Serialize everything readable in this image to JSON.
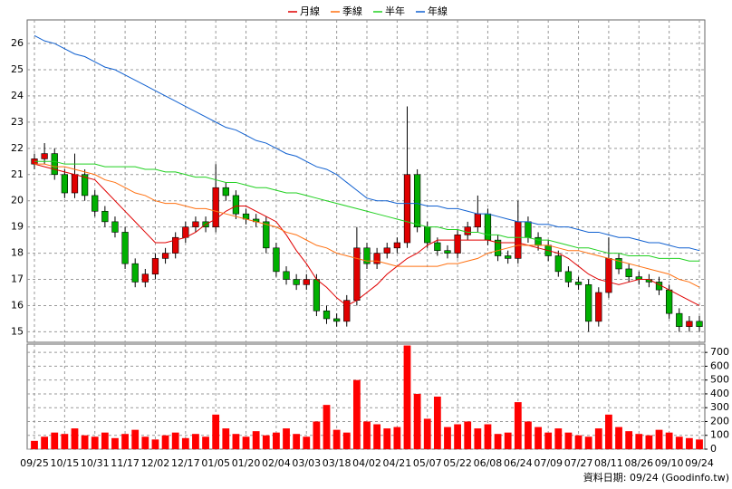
{
  "chart_data": {
    "type": "candlestick",
    "source": "資料日期: 09/24  (Goodinfo.tw)",
    "categories": [
      "09/25",
      null,
      null,
      "10/15",
      null,
      null,
      "10/31",
      null,
      null,
      "11/17",
      null,
      null,
      "12/02",
      null,
      null,
      "12/17",
      null,
      null,
      "01/05",
      null,
      null,
      "01/20",
      null,
      null,
      "02/04",
      null,
      null,
      "03/03",
      null,
      null,
      "03/18",
      null,
      null,
      "04/02",
      null,
      null,
      "04/21",
      null,
      null,
      "05/07",
      null,
      null,
      "05/22",
      null,
      null,
      "06/08",
      null,
      null,
      "06/24",
      null,
      null,
      "07/09",
      null,
      null,
      "07/27",
      null,
      null,
      "08/11",
      null,
      null,
      "08/26",
      null,
      null,
      "09/10",
      null,
      null,
      "09/24"
    ],
    "open": [
      21.4,
      21.6,
      21.8,
      21.0,
      20.3,
      21.0,
      20.2,
      19.6,
      19.2,
      18.8,
      17.6,
      16.9,
      17.2,
      17.8,
      18.0,
      18.6,
      19.0,
      19.2,
      19.0,
      20.5,
      20.2,
      19.5,
      19.3,
      19.2,
      18.2,
      17.3,
      17.0,
      16.8,
      17.0,
      15.8,
      15.5,
      15.4,
      16.2,
      18.2,
      17.6,
      18.0,
      18.2,
      18.4,
      21.0,
      19.0,
      18.4,
      18.1,
      18.0,
      18.7,
      19.0,
      19.5,
      18.5,
      17.9,
      17.8,
      19.2,
      18.6,
      18.3,
      17.9,
      17.3,
      16.9,
      16.8,
      15.4,
      16.5,
      17.8,
      17.4,
      17.1,
      17.0,
      16.9,
      16.6,
      15.7,
      15.2,
      15.4
    ],
    "high": [
      21.8,
      22.2,
      22.0,
      21.2,
      21.8,
      21.2,
      20.4,
      19.8,
      19.4,
      19.0,
      17.8,
      17.4,
      18.0,
      18.2,
      18.8,
      19.2,
      19.4,
      19.4,
      21.4,
      20.7,
      20.4,
      19.7,
      19.5,
      19.4,
      18.4,
      17.5,
      17.2,
      17.2,
      17.2,
      16.0,
      15.7,
      16.4,
      19.0,
      18.4,
      18.2,
      18.4,
      18.6,
      23.6,
      21.2,
      19.2,
      18.6,
      18.3,
      18.9,
      19.2,
      20.2,
      19.7,
      18.7,
      18.1,
      20.0,
      19.4,
      18.8,
      18.5,
      18.1,
      17.5,
      17.1,
      17.0,
      16.7,
      18.6,
      18.0,
      17.6,
      17.3,
      17.2,
      17.1,
      16.8,
      15.9,
      15.6,
      15.6
    ],
    "low": [
      21.2,
      21.4,
      20.8,
      20.1,
      20.1,
      20.0,
      19.4,
      19.0,
      18.6,
      17.4,
      16.7,
      16.7,
      17.0,
      17.6,
      17.8,
      18.4,
      18.8,
      18.8,
      18.8,
      20.0,
      19.3,
      19.1,
      19.0,
      18.0,
      17.1,
      16.8,
      16.6,
      16.6,
      15.6,
      15.3,
      15.2,
      15.2,
      16.0,
      17.4,
      17.4,
      17.8,
      18.0,
      18.2,
      18.8,
      18.2,
      17.9,
      17.8,
      17.8,
      18.5,
      18.8,
      18.3,
      17.7,
      17.6,
      17.6,
      18.4,
      18.1,
      17.7,
      17.1,
      16.7,
      16.6,
      15.0,
      15.2,
      16.3,
      17.2,
      16.9,
      16.8,
      16.7,
      16.4,
      15.5,
      15.0,
      15.0,
      15.0
    ],
    "close": [
      21.6,
      21.8,
      21.0,
      20.3,
      21.0,
      20.2,
      19.6,
      19.2,
      18.8,
      17.6,
      16.9,
      17.2,
      17.8,
      18.0,
      18.6,
      19.0,
      19.2,
      19.0,
      20.5,
      20.2,
      19.5,
      19.3,
      19.2,
      18.2,
      17.3,
      17.0,
      16.8,
      17.0,
      15.8,
      15.5,
      15.4,
      16.2,
      18.2,
      17.6,
      18.0,
      18.2,
      18.4,
      21.0,
      19.0,
      18.4,
      18.1,
      18.0,
      18.7,
      19.0,
      19.5,
      18.5,
      17.9,
      17.8,
      19.2,
      18.6,
      18.3,
      17.9,
      17.3,
      16.9,
      16.8,
      15.4,
      16.5,
      17.8,
      17.4,
      17.1,
      17.0,
      16.9,
      16.6,
      15.7,
      15.2,
      15.4,
      15.2
    ],
    "up_color": "#e00000",
    "down_color": "#00b000",
    "series": [
      {
        "name": "月線",
        "color": "#e00000",
        "values": [
          21.4,
          21.3,
          21.2,
          21.1,
          21.0,
          20.9,
          20.8,
          20.4,
          20.0,
          19.6,
          19.2,
          18.8,
          18.4,
          18.4,
          18.5,
          18.6,
          18.8,
          19.1,
          19.3,
          19.6,
          19.8,
          19.8,
          19.6,
          19.4,
          19.2,
          18.7,
          18.1,
          17.6,
          17.0,
          16.7,
          16.3,
          16.0,
          16.2,
          16.5,
          16.8,
          17.2,
          17.5,
          17.8,
          18.0,
          18.3,
          18.5,
          18.5,
          18.5,
          18.5,
          18.5,
          18.5,
          18.4,
          18.4,
          18.4,
          18.3,
          18.2,
          18.1,
          18.0,
          17.8,
          17.5,
          17.2,
          17.0,
          16.9,
          16.8,
          16.9,
          17.0,
          17.0,
          16.8,
          16.6,
          16.4,
          16.2,
          16.0
        ]
      },
      {
        "name": "季線",
        "color": "#ff7010",
        "values": [
          21.4,
          21.4,
          21.3,
          21.3,
          21.2,
          21.1,
          21.0,
          20.8,
          20.7,
          20.5,
          20.3,
          20.2,
          20.0,
          19.9,
          19.9,
          19.8,
          19.7,
          19.7,
          19.6,
          19.5,
          19.4,
          19.3,
          19.2,
          19.1,
          19.0,
          18.8,
          18.7,
          18.5,
          18.3,
          18.2,
          18.0,
          17.9,
          17.8,
          17.7,
          17.7,
          17.6,
          17.5,
          17.5,
          17.5,
          17.5,
          17.5,
          17.6,
          17.6,
          17.7,
          17.8,
          18.0,
          18.1,
          18.2,
          18.3,
          18.3,
          18.3,
          18.3,
          18.2,
          18.1,
          18.1,
          18.0,
          17.9,
          17.8,
          17.7,
          17.6,
          17.5,
          17.4,
          17.3,
          17.2,
          17.0,
          16.9,
          16.7
        ]
      },
      {
        "name": "半年",
        "color": "#20d020",
        "values": [
          21.5,
          21.5,
          21.5,
          21.4,
          21.4,
          21.4,
          21.4,
          21.3,
          21.3,
          21.3,
          21.3,
          21.2,
          21.2,
          21.1,
          21.1,
          21.0,
          20.9,
          20.9,
          20.8,
          20.7,
          20.7,
          20.6,
          20.5,
          20.5,
          20.4,
          20.3,
          20.3,
          20.2,
          20.1,
          20.0,
          19.9,
          19.8,
          19.7,
          19.6,
          19.5,
          19.4,
          19.3,
          19.2,
          19.1,
          19.0,
          19.0,
          18.9,
          18.9,
          18.8,
          18.8,
          18.7,
          18.7,
          18.6,
          18.6,
          18.6,
          18.5,
          18.5,
          18.4,
          18.3,
          18.2,
          18.2,
          18.1,
          18.0,
          18.0,
          17.9,
          17.9,
          17.9,
          17.8,
          17.8,
          17.8,
          17.7,
          17.7
        ]
      },
      {
        "name": "年線",
        "color": "#1060d0",
        "values": [
          26.3,
          26.1,
          26.0,
          25.8,
          25.6,
          25.5,
          25.3,
          25.1,
          25.0,
          24.8,
          24.6,
          24.4,
          24.2,
          24.0,
          23.8,
          23.6,
          23.4,
          23.2,
          23.0,
          22.8,
          22.7,
          22.5,
          22.3,
          22.2,
          22.0,
          21.8,
          21.7,
          21.5,
          21.3,
          21.2,
          21.0,
          20.7,
          20.4,
          20.1,
          20.0,
          20.0,
          19.9,
          19.9,
          19.9,
          19.8,
          19.8,
          19.7,
          19.7,
          19.6,
          19.5,
          19.5,
          19.4,
          19.3,
          19.2,
          19.2,
          19.1,
          19.1,
          19.0,
          19.0,
          18.9,
          18.8,
          18.8,
          18.7,
          18.6,
          18.6,
          18.5,
          18.4,
          18.4,
          18.3,
          18.2,
          18.2,
          18.1
        ]
      }
    ],
    "ylim": [
      14.6,
      26.9
    ],
    "yticks": [
      15,
      16,
      17,
      18,
      19,
      20,
      21,
      22,
      23,
      24,
      25,
      26
    ],
    "volume": {
      "color": "#ff0000",
      "ylim": [
        0,
        760
      ],
      "yticks": [
        0,
        100,
        200,
        300,
        400,
        500,
        600,
        700
      ],
      "values": [
        60,
        90,
        120,
        110,
        150,
        100,
        90,
        120,
        80,
        110,
        140,
        90,
        70,
        100,
        120,
        80,
        110,
        90,
        250,
        150,
        110,
        90,
        130,
        100,
        120,
        150,
        110,
        90,
        200,
        320,
        140,
        120,
        500,
        200,
        180,
        150,
        160,
        750,
        400,
        220,
        380,
        160,
        180,
        200,
        150,
        180,
        110,
        120,
        340,
        200,
        160,
        120,
        150,
        120,
        100,
        90,
        150,
        250,
        160,
        130,
        110,
        100,
        140,
        120,
        90,
        80,
        70
      ]
    },
    "grid": true
  }
}
